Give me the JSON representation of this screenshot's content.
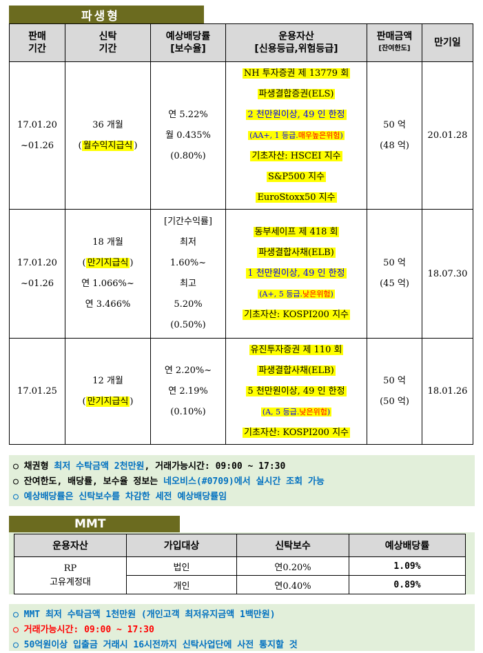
{
  "section1": {
    "title": "파생형",
    "headers": [
      "판매\n기간",
      "신탁\n기간",
      "예상배당률\n[보수율]",
      "운용자산\n[신용등급,위험등급]",
      "판매금액",
      "[잔여한도]",
      "만기일"
    ],
    "rows": [
      {
        "period": [
          "17.01.20",
          "~01.26"
        ],
        "term": [
          "36 개월",
          "(",
          "월수익지급식",
          ")"
        ],
        "rate": [
          "연 5.22%",
          "월 0.435%",
          "(0.80%)"
        ],
        "asset": {
          "line1": "NH 투자증권 제 13779 회",
          "line2": "파생결합증권(ELS)",
          "line3": "2 천만원이상, 49 인 한정",
          "grade_a": "(AA+, 1 등급.",
          "grade_b": "매우높은위험",
          "grade_c": ")",
          "line5": "기초자산: HSCEI 지수",
          "line6": "S&P500 지수",
          "line7": "EuroStoxx50 지수"
        },
        "amount": [
          "50 억",
          "(48 억)"
        ],
        "maturity": "20.01.28"
      },
      {
        "period": [
          "17.01.20",
          "~01.26"
        ],
        "term": [
          "18 개월",
          "(",
          "만기지급식",
          ")",
          "연 1.066%~",
          "연 3.466%"
        ],
        "rate": [
          "[기간수익률]",
          "최저",
          "1.60%~",
          "최고",
          "5.20%",
          "(0.50%)"
        ],
        "asset": {
          "line1": "동부세이프 제 418 회",
          "line2": "파생결합사채(ELB)",
          "line3": "1 천만원이상, 49 인 한정",
          "grade_a": "(A+, 5 등급.",
          "grade_b": "낮은위험",
          "grade_c": ")",
          "line5": "기초자산: KOSPI200 지수"
        },
        "amount": [
          "50 억",
          "(45 억)"
        ],
        "maturity": "18.07.30"
      },
      {
        "period": [
          "17.01.25"
        ],
        "term": [
          "12 개월",
          "(",
          "만기지급식",
          ")"
        ],
        "rate": [
          "연 2.20%~",
          "연 2.19%",
          "(0.10%)"
        ],
        "asset": {
          "line1": "유진투자증권 제 110 회",
          "line2": "파생결합사채(ELB)",
          "line3": "5 천만원이상, 49 인 한정",
          "grade_a": "(A, 5 등급.",
          "grade_b": "낮은위험",
          "grade_c": ")",
          "line5": "기초자산: KOSPI200 지수"
        },
        "amount": [
          "50 억",
          "(50 억)"
        ],
        "maturity": "18.01.26"
      }
    ]
  },
  "notes1": {
    "l1a": "○ 채권형 ",
    "l1b": "최저 수탁금액 2천만원",
    "l1c": ", 거래가능시간: 09:00 ~ 17:30",
    "l2a": "○ 잔여한도, 배당률, 보수율 정보는 ",
    "l2b": "네오비스(#0709)에서 실시간 조회 가능",
    "l3": "○ 예상배당률은 신탁보수를 차감한 세전 예상배당률임"
  },
  "section2": {
    "title": "MMT",
    "headers": [
      "운용자산",
      "가입대상",
      "신탁보수",
      "예상배당률"
    ],
    "asset": [
      "RP",
      "고유계정대"
    ],
    "rows": [
      {
        "target": "법인",
        "fee": "연0.20%",
        "rate": "1.09%"
      },
      {
        "target": "개인",
        "fee": "연0.40%",
        "rate": "0.89%"
      }
    ]
  },
  "notes2": {
    "l1": "○ MMT 최저 수탁금액 1천만원 (개인고객 최저유지금액 1백만원)",
    "l2": "○ 거래가능시간: 09:00 ~ 17:30",
    "l3": "○ 50억원이상 입출금 거래시 16시전까지 신탁사업단에 사전 통지할 것"
  },
  "colors": {
    "tab": "#6b6b1f",
    "highlight": "#ffff00",
    "note_bg": "#e2efda",
    "blue": "#0070c0",
    "red": "#ff0000"
  }
}
